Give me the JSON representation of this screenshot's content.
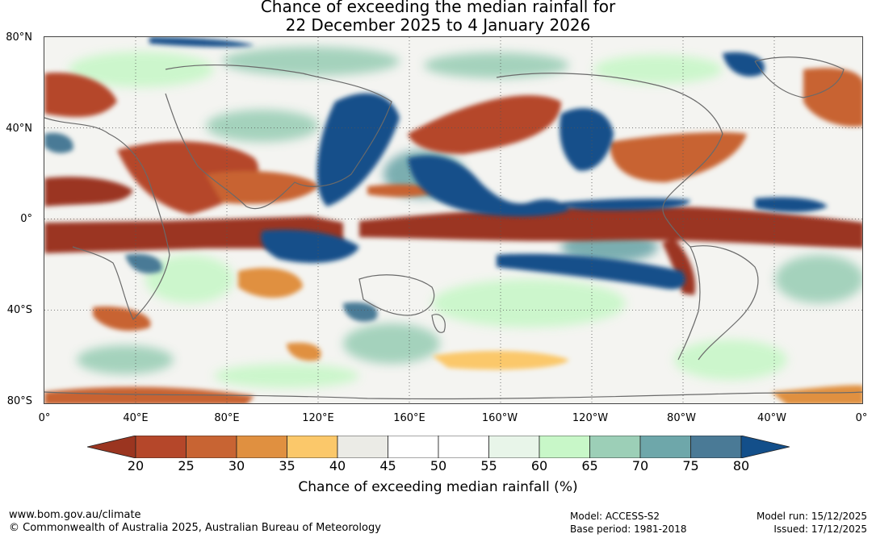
{
  "title": {
    "line1": "Chance of exceeding the median rainfall for",
    "line2": "22 December 2025 to 4 January 2026"
  },
  "lat_labels": [
    "80°N",
    "40°N",
    "0°",
    "40°S",
    "80°S"
  ],
  "lon_labels": [
    "0°",
    "40°E",
    "80°E",
    "120°E",
    "160°E",
    "160°W",
    "120°W",
    "80°W",
    "40°W",
    "0°"
  ],
  "colorbar": {
    "title": "Chance of exceeding median rainfall (%)",
    "ticks": [
      "20",
      "25",
      "30",
      "35",
      "40",
      "45",
      "50",
      "55",
      "60",
      "65",
      "70",
      "75",
      "80"
    ],
    "colors": [
      "#9b3520",
      "#b5472a",
      "#c86433",
      "#e09040",
      "#fbc86a",
      "#ebebe6",
      "#ffffff",
      "#ffffff",
      "#e8f5e9",
      "#c8f7c8",
      "#9ccfb7",
      "#6ea7aa",
      "#4a7a96",
      "#134f8a"
    ]
  },
  "footer": {
    "url": "www.bom.gov.au/climate",
    "copyright": "© Commonwealth of Australia 2025, Australian Bureau of Meteorology",
    "model": "Model: ACCESS-S2",
    "base_period": "Base period: 1981-2018",
    "model_run": "Model run: 15/12/2025",
    "issued": "Issued: 17/12/2025"
  }
}
